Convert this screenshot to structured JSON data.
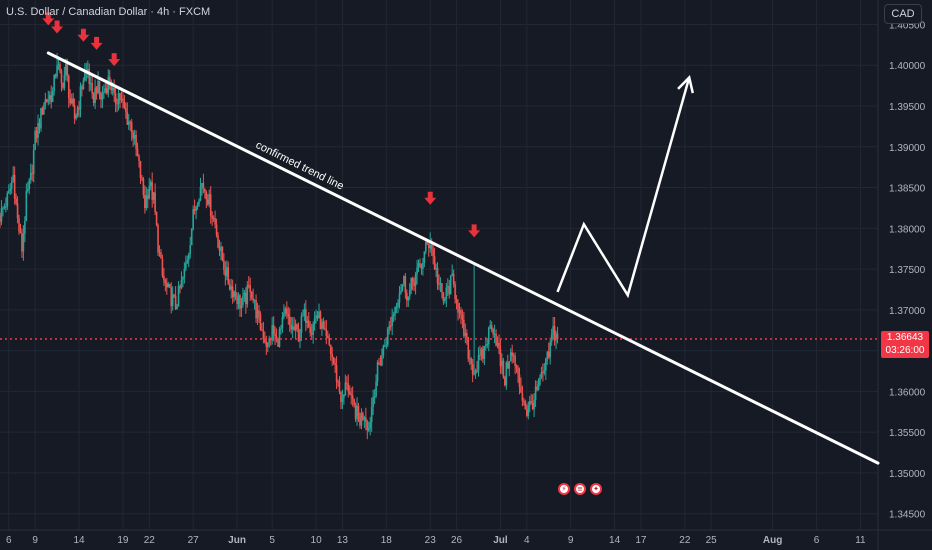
{
  "header": {
    "title": "U.S. Dollar / Canadian Dollar · 4h · FXCM",
    "currency_button": "CAD"
  },
  "price_tag": {
    "price": "1.36643",
    "countdown": "03:26:00"
  },
  "annotations": {
    "trend_line_label": "confirmed trend line"
  },
  "event_icons": [
    {
      "name": "lightning-event-icon",
      "glyph": "⚡"
    },
    {
      "name": "us-flag-event-icon",
      "glyph": "≡"
    },
    {
      "name": "canada-flag-event-icon",
      "glyph": "✦"
    }
  ],
  "colors": {
    "background": "#161a25",
    "up": "#26a69a",
    "down": "#ef5350",
    "price_line": "#f23645",
    "markers": "#e8323c",
    "trend_line": "#ffffff"
  },
  "chart_data": {
    "type": "candlestick",
    "symbol": "USD/CAD",
    "timeframe": "4h",
    "source": "FXCM",
    "y_axis": {
      "range": [
        1.343,
        1.408
      ],
      "ticks": [
        "1.34500",
        "1.35000",
        "1.35500",
        "1.36000",
        "1.36500",
        "1.37000",
        "1.37500",
        "1.38000",
        "1.38500",
        "1.39000",
        "1.39500",
        "1.40000",
        "1.40500"
      ],
      "tick_values": [
        1.345,
        1.35,
        1.355,
        1.36,
        1.365,
        1.37,
        1.375,
        1.38,
        1.385,
        1.39,
        1.395,
        1.4,
        1.405
      ]
    },
    "x_axis": {
      "range": [
        "2025-05-05T00:00",
        "2025-08-13T00:00"
      ],
      "ticks": [
        {
          "date": "2025-05-06",
          "label": "6",
          "bold": false
        },
        {
          "date": "2025-05-09",
          "label": "9",
          "bold": false
        },
        {
          "date": "2025-05-14",
          "label": "14",
          "bold": false
        },
        {
          "date": "2025-05-19",
          "label": "19",
          "bold": false
        },
        {
          "date": "2025-05-22",
          "label": "22",
          "bold": false
        },
        {
          "date": "2025-05-27",
          "label": "27",
          "bold": false
        },
        {
          "date": "2025-06-01",
          "label": "Jun",
          "bold": true
        },
        {
          "date": "2025-06-05",
          "label": "5",
          "bold": false
        },
        {
          "date": "2025-06-10",
          "label": "10",
          "bold": false
        },
        {
          "date": "2025-06-13",
          "label": "13",
          "bold": false
        },
        {
          "date": "2025-06-18",
          "label": "18",
          "bold": false
        },
        {
          "date": "2025-06-23",
          "label": "23",
          "bold": false
        },
        {
          "date": "2025-06-26",
          "label": "26",
          "bold": false
        },
        {
          "date": "2025-07-01",
          "label": "Jul",
          "bold": true
        },
        {
          "date": "2025-07-04",
          "label": "4",
          "bold": false
        },
        {
          "date": "2025-07-09",
          "label": "9",
          "bold": false
        },
        {
          "date": "2025-07-14",
          "label": "14",
          "bold": false
        },
        {
          "date": "2025-07-17",
          "label": "17",
          "bold": false
        },
        {
          "date": "2025-07-22",
          "label": "22",
          "bold": false
        },
        {
          "date": "2025-07-25",
          "label": "25",
          "bold": false
        },
        {
          "date": "2025-08-01",
          "label": "Aug",
          "bold": true
        },
        {
          "date": "2025-08-06",
          "label": "6",
          "bold": false
        },
        {
          "date": "2025-08-11",
          "label": "11",
          "bold": false
        }
      ]
    },
    "current_price": 1.36643,
    "price_path": [
      [
        "2025-05-05T00:00",
        1.3815
      ],
      [
        "2025-05-06T00:00",
        1.384
      ],
      [
        "2025-05-06T12:00",
        1.3865
      ],
      [
        "2025-05-07T00:00",
        1.381
      ],
      [
        "2025-05-07T12:00",
        1.3775
      ],
      [
        "2025-05-08T00:00",
        1.3835
      ],
      [
        "2025-05-08T12:00",
        1.386
      ],
      [
        "2025-05-09T00:00",
        1.391
      ],
      [
        "2025-05-09T12:00",
        1.393
      ],
      [
        "2025-05-10T00:00",
        1.3955
      ],
      [
        "2025-05-11T00:00",
        1.3965
      ],
      [
        "2025-05-11T12:00",
        1.4005
      ],
      [
        "2025-05-12T00:00",
        1.3975
      ],
      [
        "2025-05-12T12:00",
        1.3995
      ],
      [
        "2025-05-13T00:00",
        1.3955
      ],
      [
        "2025-05-13T12:00",
        1.3935
      ],
      [
        "2025-05-14T00:00",
        1.3955
      ],
      [
        "2025-05-14T12:00",
        1.3985
      ],
      [
        "2025-05-15T00:00",
        1.3995
      ],
      [
        "2025-05-15T12:00",
        1.3955
      ],
      [
        "2025-05-16T00:00",
        1.3975
      ],
      [
        "2025-05-16T12:00",
        1.396
      ],
      [
        "2025-05-17T12:00",
        1.3985
      ],
      [
        "2025-05-18T00:00",
        1.3955
      ],
      [
        "2025-05-18T12:00",
        1.3965
      ],
      [
        "2025-05-19T00:00",
        1.395
      ],
      [
        "2025-05-19T12:00",
        1.3935
      ],
      [
        "2025-05-20T00:00",
        1.3925
      ],
      [
        "2025-05-20T12:00",
        1.3895
      ],
      [
        "2025-05-21T00:00",
        1.3865
      ],
      [
        "2025-05-21T12:00",
        1.383
      ],
      [
        "2025-05-22T00:00",
        1.3855
      ],
      [
        "2025-05-22T12:00",
        1.3835
      ],
      [
        "2025-05-23T00:00",
        1.378
      ],
      [
        "2025-05-23T12:00",
        1.374
      ],
      [
        "2025-05-24T00:00",
        1.3725
      ],
      [
        "2025-05-25T00:00",
        1.3705
      ],
      [
        "2025-05-25T12:00",
        1.3725
      ],
      [
        "2025-05-26T00:00",
        1.3745
      ],
      [
        "2025-05-26T12:00",
        1.3775
      ],
      [
        "2025-05-27T00:00",
        1.3815
      ],
      [
        "2025-05-27T12:00",
        1.384
      ],
      [
        "2025-05-28T00:00",
        1.3855
      ],
      [
        "2025-05-28T12:00",
        1.3845
      ],
      [
        "2025-05-29T00:00",
        1.3825
      ],
      [
        "2025-05-29T12:00",
        1.3805
      ],
      [
        "2025-05-30T00:00",
        1.3775
      ],
      [
        "2025-05-30T12:00",
        1.3755
      ],
      [
        "2025-05-31T00:00",
        1.3735
      ],
      [
        "2025-06-01T00:00",
        1.3715
      ],
      [
        "2025-06-01T12:00",
        1.3705
      ],
      [
        "2025-06-02T00:00",
        1.3715
      ],
      [
        "2025-06-02T12:00",
        1.373
      ],
      [
        "2025-06-03T00:00",
        1.3705
      ],
      [
        "2025-06-03T12:00",
        1.3685
      ],
      [
        "2025-06-04T00:00",
        1.367
      ],
      [
        "2025-06-04T12:00",
        1.3655
      ],
      [
        "2025-06-05T00:00",
        1.3675
      ],
      [
        "2025-06-05T12:00",
        1.366
      ],
      [
        "2025-06-06T00:00",
        1.3675
      ],
      [
        "2025-06-06T12:00",
        1.3695
      ],
      [
        "2025-06-07T00:00",
        1.368
      ],
      [
        "2025-06-08T00:00",
        1.367
      ],
      [
        "2025-06-08T12:00",
        1.369
      ],
      [
        "2025-06-09T00:00",
        1.3695
      ],
      [
        "2025-06-09T12:00",
        1.3675
      ],
      [
        "2025-06-10T00:00",
        1.3695
      ],
      [
        "2025-06-10T12:00",
        1.3685
      ],
      [
        "2025-06-11T00:00",
        1.3665
      ],
      [
        "2025-06-11T12:00",
        1.3655
      ],
      [
        "2025-06-12T00:00",
        1.3635
      ],
      [
        "2025-06-12T12:00",
        1.361
      ],
      [
        "2025-06-13T00:00",
        1.3585
      ],
      [
        "2025-06-13T12:00",
        1.3615
      ],
      [
        "2025-06-14T00:00",
        1.3585
      ],
      [
        "2025-06-15T00:00",
        1.3565
      ],
      [
        "2025-06-15T12:00",
        1.3575
      ],
      [
        "2025-06-16T00:00",
        1.3555
      ],
      [
        "2025-06-16T12:00",
        1.3595
      ],
      [
        "2025-06-17T00:00",
        1.3625
      ],
      [
        "2025-06-17T12:00",
        1.3645
      ],
      [
        "2025-06-18T00:00",
        1.3665
      ],
      [
        "2025-06-18T12:00",
        1.3685
      ],
      [
        "2025-06-19T00:00",
        1.3705
      ],
      [
        "2025-06-19T12:00",
        1.3725
      ],
      [
        "2025-06-20T00:00",
        1.3735
      ],
      [
        "2025-06-20T12:00",
        1.3715
      ],
      [
        "2025-06-21T00:00",
        1.3735
      ],
      [
        "2025-06-22T00:00",
        1.3755
      ],
      [
        "2025-06-22T12:00",
        1.3775
      ],
      [
        "2025-06-23T00:00",
        1.3785
      ],
      [
        "2025-06-23T12:00",
        1.3755
      ],
      [
        "2025-06-24T00:00",
        1.373
      ],
      [
        "2025-06-24T12:00",
        1.371
      ],
      [
        "2025-06-25T00:00",
        1.3725
      ],
      [
        "2025-06-25T12:00",
        1.3735
      ],
      [
        "2025-06-26T00:00",
        1.3715
      ],
      [
        "2025-06-26T12:00",
        1.3685
      ],
      [
        "2025-06-27T00:00",
        1.3665
      ],
      [
        "2025-06-27T12:00",
        1.364
      ],
      [
        "2025-06-28T00:00",
        1.3625
      ],
      [
        "2025-06-29T00:00",
        1.3645
      ],
      [
        "2025-06-29T12:00",
        1.3665
      ],
      [
        "2025-06-30T00:00",
        1.3685
      ],
      [
        "2025-06-30T12:00",
        1.3665
      ],
      [
        "2025-07-01T00:00",
        1.3635
      ],
      [
        "2025-07-01T12:00",
        1.3615
      ],
      [
        "2025-07-02T00:00",
        1.3645
      ],
      [
        "2025-07-02T12:00",
        1.364
      ],
      [
        "2025-07-03T00:00",
        1.3615
      ],
      [
        "2025-07-03T12:00",
        1.3595
      ],
      [
        "2025-07-04T00:00",
        1.3575
      ],
      [
        "2025-07-04T12:00",
        1.3585
      ],
      [
        "2025-07-05T00:00",
        1.3595
      ],
      [
        "2025-07-05T12:00",
        1.361
      ],
      [
        "2025-07-06T00:00",
        1.3625
      ],
      [
        "2025-07-06T12:00",
        1.3645
      ],
      [
        "2025-07-07T00:00",
        1.3675
      ],
      [
        "2025-07-07T12:00",
        1.36643
      ]
    ],
    "highlighted_wicks": [
      {
        "date": "2025-06-23T00:00",
        "high": 1.3795
      },
      {
        "date": "2025-06-28T00:00",
        "high": 1.3755
      },
      {
        "date": "2025-05-11T12:00",
        "high": 1.4015
      }
    ],
    "drawings": {
      "trend_line": [
        [
          "2025-05-10T12:00",
          1.4015
        ],
        [
          "2025-08-13T00:00",
          1.3512
        ]
      ],
      "projection_path": [
        [
          "2025-07-07T12:00",
          1.3722
        ],
        [
          "2025-07-10T12:00",
          1.3805
        ],
        [
          "2025-07-15T12:00",
          1.3718
        ],
        [
          "2025-07-22T12:00",
          1.3985
        ]
      ],
      "sell_markers": [
        [
          "2025-05-10T12:00",
          1.4055
        ],
        [
          "2025-05-11T12:00",
          1.4045
        ],
        [
          "2025-05-14T12:00",
          1.4035
        ],
        [
          "2025-05-16T00:00",
          1.4025
        ],
        [
          "2025-05-18T00:00",
          1.4005
        ],
        [
          "2025-06-23T00:00",
          1.3835
        ],
        [
          "2025-06-28T00:00",
          1.3795
        ]
      ]
    }
  }
}
